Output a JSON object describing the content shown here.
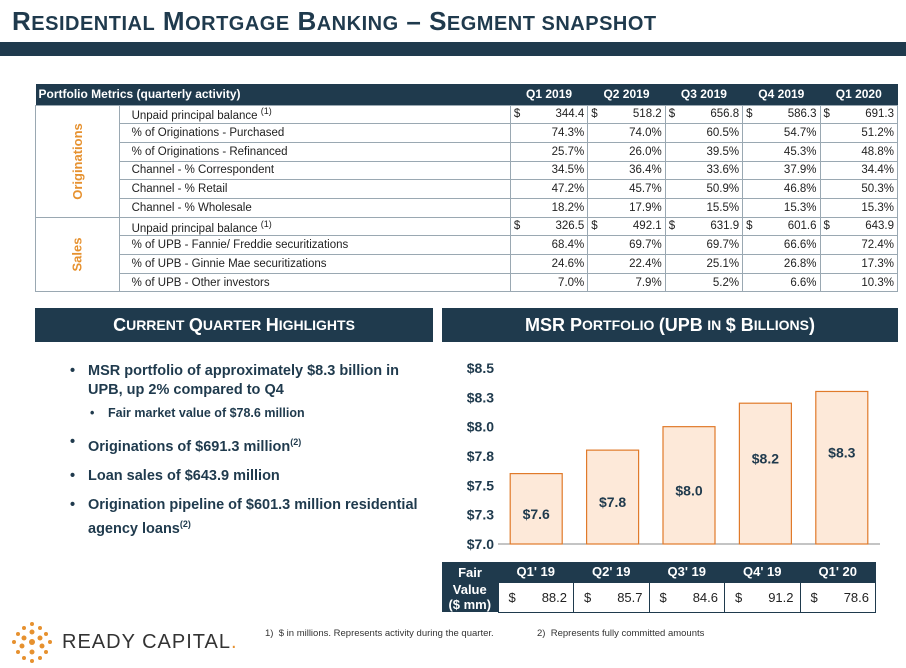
{
  "title": {
    "w1_cap": "R",
    "w1_rest": "ESIDENTIAL",
    "w2_cap": "M",
    "w2_rest": "ORTGAGE",
    "w3_cap": "B",
    "w3_rest": "ANKING",
    "dash": "–",
    "w4_cap": "S",
    "w4_rest": "EGMENT SNAPSHOT"
  },
  "metrics": {
    "header_label": "Portfolio Metrics (quarterly activity)",
    "quarters": [
      "Q1 2019",
      "Q2 2019",
      "Q3 2019",
      "Q4 2019",
      "Q1 2020"
    ],
    "originations_label": "Originations",
    "sales_label": "Sales",
    "dollar": "$",
    "originations": [
      {
        "label": "Unpaid principal balance",
        "sup": "(1)",
        "dollar": true,
        "values": [
          "344.4",
          "518.2",
          "656.8",
          "586.3",
          "691.3"
        ]
      },
      {
        "label": "% of Originations - Purchased",
        "values": [
          "74.3%",
          "74.0%",
          "60.5%",
          "54.7%",
          "51.2%"
        ]
      },
      {
        "label": "% of Originations - Refinanced",
        "values": [
          "25.7%",
          "26.0%",
          "39.5%",
          "45.3%",
          "48.8%"
        ]
      },
      {
        "label": "Channel - % Correspondent",
        "values": [
          "34.5%",
          "36.4%",
          "33.6%",
          "37.9%",
          "34.4%"
        ]
      },
      {
        "label": "Channel - % Retail",
        "values": [
          "47.2%",
          "45.7%",
          "50.9%",
          "46.8%",
          "50.3%"
        ]
      },
      {
        "label": "Channel - % Wholesale",
        "values": [
          "18.2%",
          "17.9%",
          "15.5%",
          "15.3%",
          "15.3%"
        ]
      }
    ],
    "sales": [
      {
        "label": "Unpaid principal balance",
        "sup": "(1)",
        "dollar": true,
        "values": [
          "326.5",
          "492.1",
          "631.9",
          "601.6",
          "643.9"
        ]
      },
      {
        "label": "% of UPB - Fannie/ Freddie securitizations",
        "values": [
          "68.4%",
          "69.7%",
          "69.7%",
          "66.6%",
          "72.4%"
        ]
      },
      {
        "label": "% of UPB - Ginnie Mae securitizations",
        "values": [
          "24.6%",
          "22.4%",
          "25.1%",
          "26.8%",
          "17.3%"
        ]
      },
      {
        "label": "% of UPB - Other investors",
        "values": [
          "7.0%",
          "7.9%",
          "5.2%",
          "6.6%",
          "10.3%"
        ]
      }
    ]
  },
  "highlights": {
    "header": {
      "c1": "C",
      "r1": "URRENT",
      "c2": "Q",
      "r2": "UARTER",
      "c3": "H",
      "r3": "IGHLIGHTS"
    },
    "b1": "MSR portfolio of approximately $8.3 billion in UPB, up 2% compared to Q4",
    "b1_sub": "Fair market value of $78.6 million",
    "b2": "Originations of $691.3 million",
    "b2_sup": "(2)",
    "b3": "Loan sales of $643.9 million",
    "b4": "Origination pipeline of $601.3 million residential agency loans",
    "b4_sup": "(2)"
  },
  "msr": {
    "header": {
      "a": "MSR P",
      "b": "ORTFOLIO",
      "c": "(UPB",
      "d": "IN",
      "e": "$ B",
      "f": "ILLIONS",
      ")": ")"
    },
    "fair_label_1": "Fair",
    "fair_label_2": "Value",
    "fair_label_3": "($ mm)",
    "fair_dollar": "$"
  },
  "chart_data": {
    "type": "bar",
    "categories": [
      "Q1' 19",
      "Q2' 19",
      "Q3' 19",
      "Q4' 19",
      "Q1' 20"
    ],
    "values": [
      7.6,
      7.8,
      8.0,
      8.2,
      8.3
    ],
    "labels": [
      "$7.6",
      "$7.8",
      "$8.0",
      "$8.2",
      "$8.3"
    ],
    "ylim": [
      7.0,
      8.5
    ],
    "yticks": [
      7.0,
      7.25,
      7.5,
      7.75,
      8.0,
      8.25,
      8.5
    ],
    "ytick_labels": [
      "$7.0",
      "$7.3",
      "$7.5",
      "$7.8",
      "$8.0",
      "$8.3",
      "$8.5"
    ],
    "fair_values": [
      "88.2",
      "85.7",
      "84.6",
      "91.2",
      "78.6"
    ],
    "bar_color": "#fde9d9",
    "bar_border": "#e07a2a"
  },
  "footer": {
    "logo": "READY CAPITAL",
    "logo_mark": ".",
    "fn1_num": "1)",
    "fn1": "$ in millions. Represents activity during the quarter.",
    "fn2_num": "2)",
    "fn2": "Represents fully committed amounts"
  }
}
